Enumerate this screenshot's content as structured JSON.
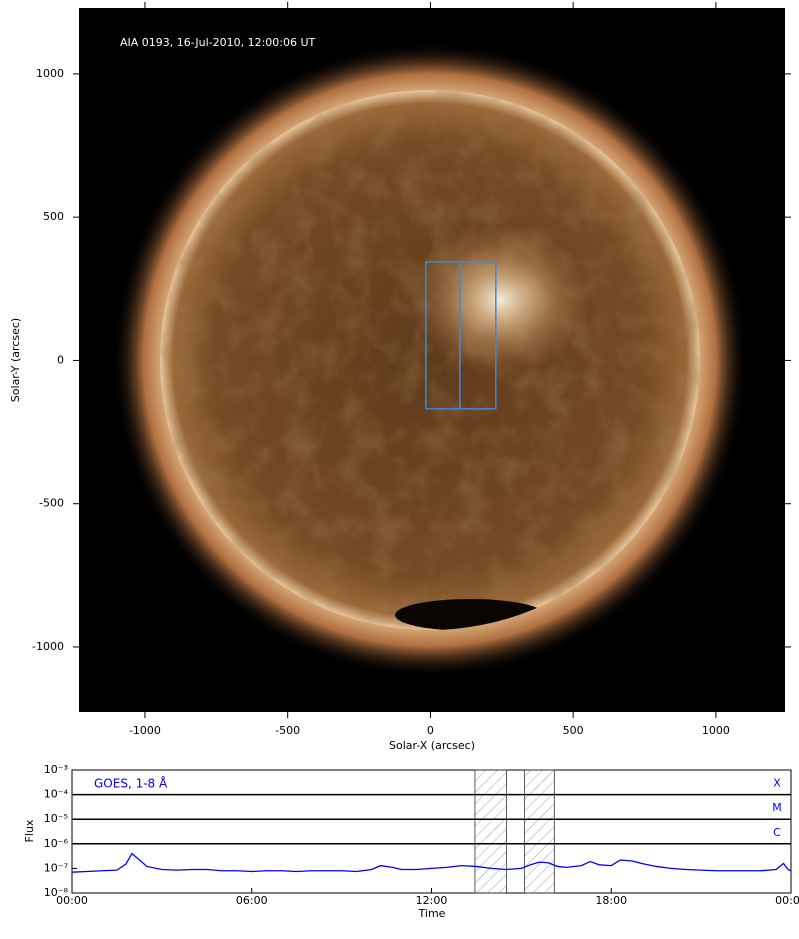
{
  "chart_data": [
    {
      "type": "image",
      "annotation": "AIA 0193, 16-Jul-2010, 12:00:06 UT",
      "xlabel": "Solar-X (arcsec)",
      "ylabel": "Solar-Y (arcsec)",
      "xlim": [
        -1231,
        1242
      ],
      "ylim": [
        -1227,
        1230
      ],
      "xticks": [
        -1000,
        -500,
        0,
        500,
        1000
      ],
      "yticks": [
        -1000,
        -500,
        0,
        500,
        1000
      ],
      "box_color": "#3a8ad8",
      "boxes": [
        {
          "x": [
            -16,
            103
          ],
          "y": [
            -169,
            344
          ]
        },
        {
          "x": [
            103,
            229
          ],
          "y": [
            -169,
            344
          ]
        }
      ]
    },
    {
      "type": "line",
      "log_y": true,
      "xlabel": "Time",
      "ylabel": "Flux",
      "xlim": [
        0,
        24
      ],
      "ylim": [
        1e-08,
        0.001
      ],
      "xticks": [
        {
          "value": 0,
          "label": "00:00"
        },
        {
          "value": 6,
          "label": "06:00"
        },
        {
          "value": 12,
          "label": "12:00"
        },
        {
          "value": 18,
          "label": "18:00"
        },
        {
          "value": 24,
          "label": "00:00"
        }
      ],
      "yticks": [
        {
          "value": 1e-08,
          "label": "10⁻⁸"
        },
        {
          "value": 1e-07,
          "label": "10⁻⁷"
        },
        {
          "value": 1e-06,
          "label": "10⁻⁶"
        },
        {
          "value": 1e-05,
          "label": "10⁻⁵"
        },
        {
          "value": 0.0001,
          "label": "10⁻⁴"
        },
        {
          "value": 0.001,
          "label": "10⁻³"
        }
      ],
      "levels": [
        {
          "label": "X",
          "value": 0.0001
        },
        {
          "label": "M",
          "value": 1e-05
        },
        {
          "label": "C",
          "value": 1e-06
        }
      ],
      "level_color": "#0000ff",
      "highlight_spans": [
        [
          13.45,
          14.5
        ],
        [
          15.1,
          16.1
        ]
      ],
      "series": [
        {
          "name": "GOES, 1-8 Å",
          "color": "#0000ff",
          "x": [
            0,
            0.5,
            1,
            1.5,
            1.8,
            2.0,
            2.2,
            2.5,
            3,
            3.5,
            4,
            4.5,
            5,
            5.5,
            6,
            6.5,
            7,
            7.5,
            8,
            8.5,
            9,
            9.5,
            10,
            10.3,
            10.7,
            11,
            11.5,
            12,
            12.5,
            13,
            13.5,
            14,
            14.5,
            15,
            15.3,
            15.6,
            15.9,
            16.2,
            16.5,
            17,
            17.3,
            17.6,
            18,
            18.3,
            18.7,
            19,
            19.5,
            20,
            20.5,
            21,
            21.5,
            22,
            22.5,
            23,
            23.5,
            23.75,
            23.9,
            24
          ],
          "values": [
            7e-08,
            7.5e-08,
            8e-08,
            8.5e-08,
            1.5e-07,
            4e-07,
            2.5e-07,
            1.2e-07,
            9e-08,
            8.5e-08,
            9e-08,
            9e-08,
            8e-08,
            8e-08,
            7.5e-08,
            8e-08,
            8e-08,
            7.5e-08,
            8e-08,
            8e-08,
            8e-08,
            7.5e-08,
            9e-08,
            1.3e-07,
            1.1e-07,
            9e-08,
            9e-08,
            1e-07,
            1.1e-07,
            1.3e-07,
            1.2e-07,
            1e-07,
            9e-08,
            1e-07,
            1.4e-07,
            1.8e-07,
            1.7e-07,
            1.2e-07,
            1.1e-07,
            1.3e-07,
            1.9e-07,
            1.4e-07,
            1.3e-07,
            2.2e-07,
            2e-07,
            1.6e-07,
            1.2e-07,
            1e-07,
            9e-08,
            8.5e-08,
            8e-08,
            8e-08,
            8e-08,
            8e-08,
            9e-08,
            1.6e-07,
            9e-08,
            8e-08
          ]
        }
      ]
    }
  ]
}
